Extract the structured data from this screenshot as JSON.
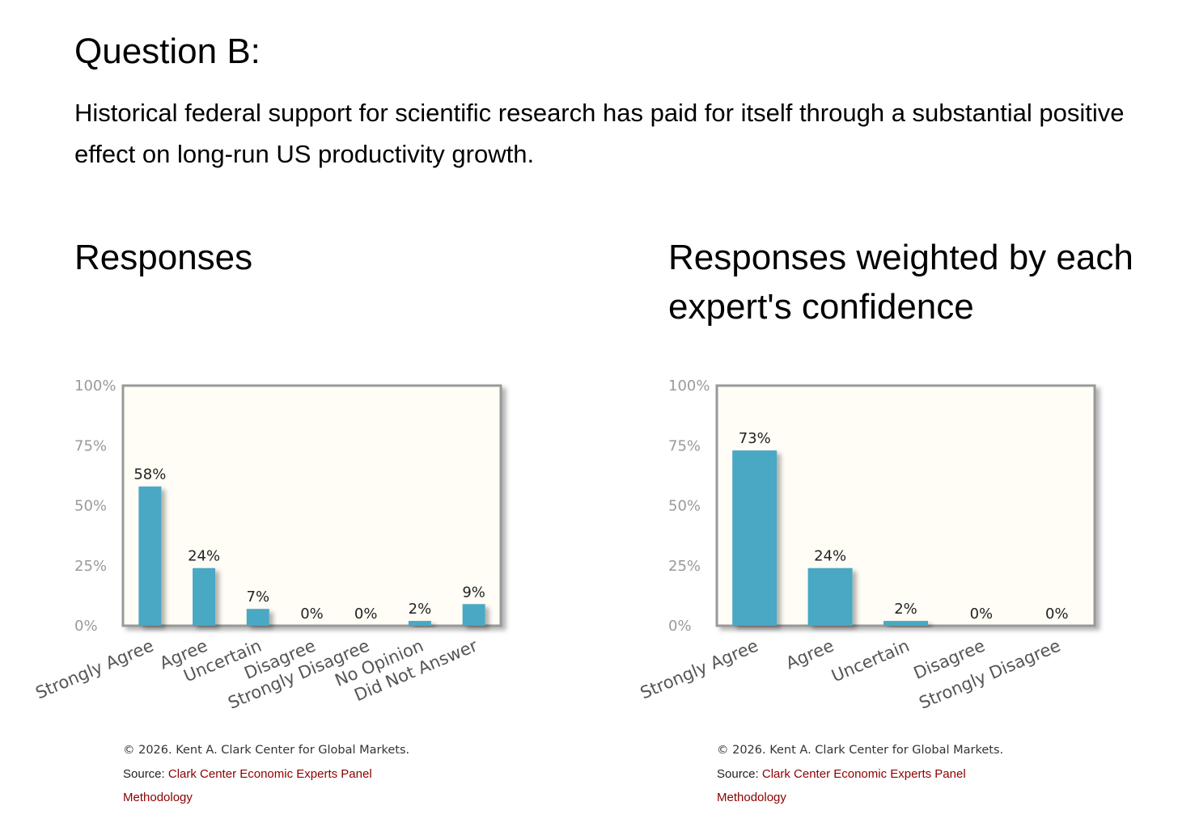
{
  "question": {
    "title": "Question B:",
    "text": "Historical federal support for scientific research has paid for itself through a substantial positive effect on long-run US productivity growth."
  },
  "chart_data": [
    {
      "type": "bar",
      "title": "Responses",
      "categories": [
        "Strongly Agree",
        "Agree",
        "Uncertain",
        "Disagree",
        "Strongly Disagree",
        "No Opinion",
        "Did Not Answer"
      ],
      "values": [
        58,
        24,
        7,
        0,
        0,
        2,
        9
      ],
      "value_labels": [
        "58%",
        "24%",
        "7%",
        "0%",
        "0%",
        "2%",
        "9%"
      ],
      "y_ticks": [
        "0%",
        "25%",
        "50%",
        "75%",
        "100%"
      ],
      "ylim": [
        0,
        100
      ],
      "bar_color": "#4aa8c4",
      "plot_background": "#fffdf6",
      "frame_color": "#999999"
    },
    {
      "type": "bar",
      "title": "Responses weighted by each expert's confidence",
      "categories": [
        "Strongly Agree",
        "Agree",
        "Uncertain",
        "Disagree",
        "Strongly Disagree"
      ],
      "values": [
        73,
        24,
        2,
        0,
        0
      ],
      "value_labels": [
        "73%",
        "24%",
        "2%",
        "0%",
        "0%"
      ],
      "y_ticks": [
        "0%",
        "25%",
        "50%",
        "75%",
        "100%"
      ],
      "ylim": [
        0,
        100
      ],
      "bar_color": "#4aa8c4",
      "plot_background": "#fffdf6",
      "frame_color": "#999999"
    }
  ],
  "footer": {
    "copyright": "© 2026. Kent A. Clark Center for Global Markets.",
    "source_prefix": "Source: ",
    "source_link": "Clark Center Economic Experts Panel",
    "methodology_link": "Methodology"
  }
}
